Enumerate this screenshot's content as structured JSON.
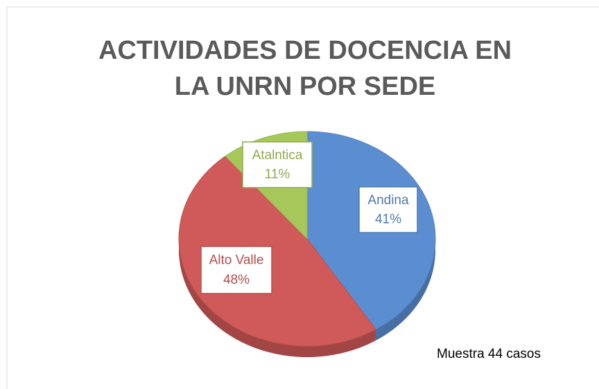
{
  "chart_data": {
    "type": "pie",
    "title": "ACTIVIDADES DE DOCENCIA EN LA UNRN POR SEDE",
    "categories": [
      "Andina",
      "Alto Valle",
      "Atalntica"
    ],
    "values": [
      41,
      48,
      11
    ],
    "value_labels": [
      "41%",
      "48%",
      "11%"
    ],
    "colors": [
      "#5b8ed1",
      "#d05a59",
      "#a6c85b"
    ],
    "annotation": "Muestra 44 casos"
  }
}
